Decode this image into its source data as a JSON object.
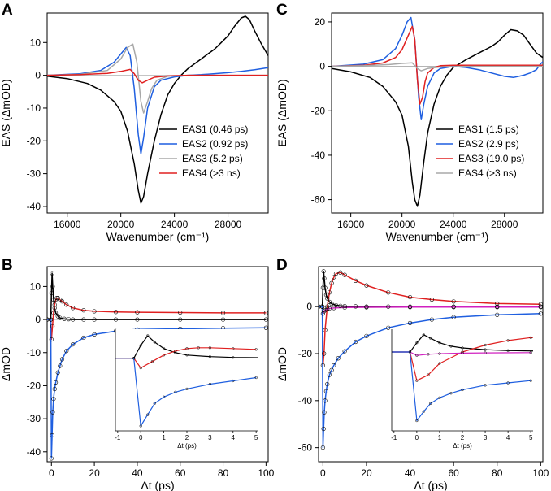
{
  "chart_data": [
    {
      "panel": "A",
      "type": "line",
      "xlabel": "Wavenumber (cm⁻¹)",
      "ylabel": "EAS (ΔmOD)",
      "xlim": [
        14500,
        31000
      ],
      "ylim": [
        -42,
        19
      ],
      "xticks": [
        16000,
        20000,
        24000,
        28000
      ],
      "yticks": [
        -40,
        -30,
        -20,
        -10,
        0,
        10
      ],
      "legend_position": "lower-right",
      "series": [
        {
          "name": "EAS1 (0.46 ps)",
          "color": "#000000",
          "x": [
            14500,
            16000,
            17500,
            18500,
            19500,
            20000,
            20500,
            21000,
            21300,
            21500,
            21700,
            22000,
            22500,
            23000,
            23500,
            24000,
            24500,
            25000,
            25500,
            26000,
            26500,
            27000,
            27500,
            28000,
            28500,
            29000,
            29300,
            29600,
            30000,
            30500,
            31000
          ],
          "y": [
            -0.3,
            -1,
            -2.5,
            -4.5,
            -8,
            -11,
            -17,
            -27,
            -35,
            -39,
            -37,
            -30,
            -20,
            -12,
            -6,
            -2.5,
            0,
            2,
            3.5,
            5,
            6.5,
            8,
            10,
            12,
            15,
            17.5,
            18,
            17,
            13.5,
            9.5,
            6
          ]
        },
        {
          "name": "EAS2 (0.92 ps)",
          "color": "#1f5fe0",
          "x": [
            14500,
            17000,
            18500,
            19500,
            20000,
            20400,
            20700,
            21000,
            21300,
            21500,
            21700,
            22000,
            22500,
            23000,
            24000,
            25000,
            26000,
            27000,
            28000,
            29000,
            30000,
            31000
          ],
          "y": [
            0,
            0.5,
            1.5,
            4,
            6.5,
            8.5,
            6,
            -4,
            -18,
            -24,
            -19,
            -10,
            -3.5,
            -1.5,
            -0.5,
            0,
            0.2,
            0.5,
            0.8,
            1.2,
            1.7,
            2.3
          ]
        },
        {
          "name": "EAS3 (5.2 ps)",
          "color": "#a8a8a8",
          "x": [
            14500,
            17000,
            19000,
            20000,
            20500,
            20900,
            21200,
            21500,
            21700,
            22000,
            22300,
            22700,
            23500,
            25000,
            27000,
            29000,
            31000
          ],
          "y": [
            0,
            0.3,
            1.5,
            5,
            8.5,
            9.5,
            4,
            -8,
            -11.5,
            -8,
            -4,
            -1.5,
            -0.3,
            0,
            0,
            0,
            0
          ]
        },
        {
          "name": "EAS4 (>3 ns)",
          "color": "#e02020",
          "x": [
            14500,
            17000,
            19000,
            20000,
            20700,
            21000,
            21300,
            21600,
            22000,
            22500,
            23500,
            25000,
            27000,
            29000,
            31000
          ],
          "y": [
            0,
            0.2,
            0.6,
            1.2,
            1.8,
            0.5,
            -1.5,
            -2.3,
            -1.5,
            -0.6,
            -0.2,
            0,
            0,
            0,
            0
          ]
        }
      ]
    },
    {
      "panel": "C",
      "type": "line",
      "xlabel": "Wavenumber (cm⁻¹)",
      "ylabel": "EAS (ΔmOD)",
      "xlim": [
        14500,
        31000
      ],
      "ylim": [
        -66,
        24
      ],
      "xticks": [
        16000,
        20000,
        24000,
        28000
      ],
      "yticks": [
        -60,
        -40,
        -20,
        0,
        20
      ],
      "legend_position": "lower-right",
      "series": [
        {
          "name": "EAS1 (1.5 ps)",
          "color": "#000000",
          "x": [
            14500,
            16000,
            17500,
            18500,
            19500,
            20000,
            20500,
            20800,
            21000,
            21200,
            21400,
            21700,
            22000,
            22500,
            23000,
            23500,
            24000,
            25000,
            26000,
            27000,
            27500,
            28000,
            28500,
            29000,
            29500,
            30000,
            30500,
            31000
          ],
          "y": [
            -1,
            -2.5,
            -5,
            -9,
            -16,
            -22,
            -36,
            -52,
            -60,
            -63,
            -58,
            -43,
            -30,
            -17,
            -9,
            -4,
            -0.5,
            3,
            6,
            9,
            11,
            14,
            16.5,
            16,
            14,
            10,
            6,
            4
          ]
        },
        {
          "name": "EAS2 (2.9 ps)",
          "color": "#1f5fe0",
          "x": [
            14500,
            17000,
            18500,
            19500,
            20000,
            20400,
            20700,
            21000,
            21300,
            21500,
            21700,
            22000,
            22500,
            23000,
            24000,
            25000,
            26000,
            27000,
            28000,
            28700,
            29500,
            30000,
            30500,
            30800,
            31000
          ],
          "y": [
            0,
            1,
            3,
            8,
            14,
            20,
            22,
            12,
            -14,
            -24,
            -17,
            -9,
            -3,
            -1,
            0,
            -0.5,
            -1.5,
            -3,
            -4.5,
            -5,
            -4,
            -3,
            -1.5,
            1,
            2
          ]
        },
        {
          "name": "EAS3 (19.0 ps)",
          "color": "#e02020",
          "x": [
            14500,
            17000,
            18500,
            19500,
            20000,
            20500,
            20800,
            21000,
            21200,
            21400,
            21600,
            21800,
            22000,
            22500,
            23000,
            24000,
            25000,
            27000,
            29000,
            31000
          ],
          "y": [
            0,
            0.5,
            1.5,
            4,
            7.5,
            14,
            18,
            12,
            -6,
            -17,
            -14,
            -7,
            -3,
            -0.5,
            0.3,
            0.5,
            0.5,
            0.5,
            0.5,
            0.5
          ]
        },
        {
          "name": "EAS4 (>3 ns)",
          "color": "#a8a8a8",
          "x": [
            14500,
            17000,
            19000,
            20000,
            20800,
            21200,
            21500,
            22000,
            23000,
            25000,
            27000,
            29000,
            31000
          ],
          "y": [
            0,
            0.3,
            0.8,
            1.3,
            1.6,
            -1,
            -2,
            -1,
            -0.3,
            0,
            0,
            0,
            0
          ]
        }
      ]
    },
    {
      "panel": "B",
      "type": "line",
      "xlabel": "Δt (ps)",
      "ylabel": "ΔmOD",
      "xlim": [
        -2,
        101
      ],
      "ylim": [
        -43,
        16
      ],
      "xticks": [
        0,
        20,
        40,
        60,
        80,
        100
      ],
      "yticks": [
        -40,
        -30,
        -20,
        -10,
        0,
        10
      ],
      "series": [
        {
          "name": "black",
          "color": "#000000",
          "x": [
            -2,
            -0.3,
            0,
            0.3,
            0.6,
            1,
            1.5,
            2,
            3,
            4,
            6,
            8,
            10,
            15,
            20,
            30,
            40,
            60,
            80,
            100
          ],
          "y": [
            0,
            0,
            8,
            14,
            10,
            6,
            3.5,
            2,
            1,
            0.5,
            0.2,
            0.1,
            0,
            0,
            0,
            0,
            0,
            0,
            0,
            0
          ]
        },
        {
          "name": "red",
          "color": "#e02020",
          "x": [
            -2,
            -0.3,
            0,
            0.5,
            1,
            1.5,
            2,
            2.5,
            3,
            4,
            5,
            7,
            10,
            15,
            20,
            30,
            40,
            60,
            80,
            100
          ],
          "y": [
            0,
            0,
            -6,
            -2,
            2,
            4.5,
            6,
            6.5,
            6.5,
            6,
            5.5,
            4.5,
            3.5,
            2.8,
            2.5,
            2.3,
            2.2,
            2.1,
            2,
            2
          ]
        },
        {
          "name": "blue",
          "color": "#1f5fe0",
          "x": [
            -2,
            -0.3,
            0,
            0.3,
            0.6,
            1,
            1.5,
            2,
            3,
            4,
            5,
            7,
            10,
            15,
            20,
            30,
            40,
            60,
            80,
            100
          ],
          "y": [
            0,
            0,
            -42,
            -35,
            -28,
            -24,
            -21,
            -19,
            -16,
            -14,
            -12,
            -9.5,
            -7.5,
            -5.5,
            -4.5,
            -3.5,
            -3,
            -2.8,
            -2.6,
            -2.5
          ]
        }
      ],
      "inset": {
        "xlim": [
          -1.1,
          5.1
        ],
        "xticks": [
          -1,
          0,
          1,
          2,
          3,
          4,
          5
        ],
        "xlabel": "Δt (ps)",
        "ylim": [
          -43,
          16
        ]
      }
    },
    {
      "panel": "D",
      "type": "line",
      "xlabel": "Δt (ps)",
      "ylabel": "ΔmOD",
      "xlim": [
        -2,
        101
      ],
      "ylim": [
        -66,
        17
      ],
      "xticks": [
        0,
        20,
        40,
        60,
        80,
        100
      ],
      "yticks": [
        -60,
        -40,
        -20,
        0
      ],
      "series": [
        {
          "name": "black",
          "color": "#000000",
          "x": [
            -2,
            -0.3,
            0,
            0.3,
            0.6,
            1,
            1.5,
            2,
            3,
            4,
            6,
            8,
            10,
            15,
            20,
            30,
            40,
            60,
            80,
            100
          ],
          "y": [
            0,
            0,
            8,
            15,
            12,
            8,
            5,
            3.5,
            2,
            1.2,
            0.6,
            0.3,
            0.2,
            0.1,
            0,
            0,
            0,
            0,
            0,
            0
          ]
        },
        {
          "name": "red",
          "color": "#e02020",
          "x": [
            -2,
            -0.3,
            0,
            0.5,
            1,
            2,
            3,
            4,
            5,
            6,
            8,
            10,
            15,
            20,
            30,
            40,
            50,
            60,
            80,
            100
          ],
          "y": [
            0,
            0,
            -25,
            -20,
            -10,
            0,
            6,
            10,
            12.5,
            14,
            14.5,
            13.5,
            11,
            9,
            6,
            4,
            3,
            2.2,
            1.3,
            1
          ]
        },
        {
          "name": "magenta",
          "color": "#d020c0",
          "x": [
            -2,
            -0.3,
            0,
            0.5,
            1,
            2,
            3,
            5,
            10,
            20,
            40,
            60,
            80,
            100
          ],
          "y": [
            0,
            0,
            -3,
            -2,
            -1.5,
            -1,
            -0.8,
            -0.6,
            -0.4,
            -0.3,
            -0.2,
            -0.2,
            -0.2,
            -0.2
          ]
        },
        {
          "name": "blue",
          "color": "#1f5fe0",
          "x": [
            -2,
            -0.3,
            0,
            0.3,
            0.6,
            1,
            1.5,
            2,
            3,
            4,
            5,
            7,
            10,
            15,
            20,
            30,
            40,
            50,
            60,
            80,
            100
          ],
          "y": [
            0,
            0,
            -60,
            -52,
            -45,
            -40,
            -36,
            -33,
            -29,
            -27,
            -25,
            -22,
            -19,
            -15,
            -12.5,
            -9,
            -7,
            -5.5,
            -4.5,
            -3.5,
            -3
          ]
        }
      ],
      "inset": {
        "xlim": [
          -1.1,
          5.1
        ],
        "xticks": [
          -1,
          0,
          1,
          2,
          3,
          4,
          5
        ],
        "xlabel": "Δt (ps)",
        "ylim": [
          -66,
          17
        ]
      }
    }
  ]
}
